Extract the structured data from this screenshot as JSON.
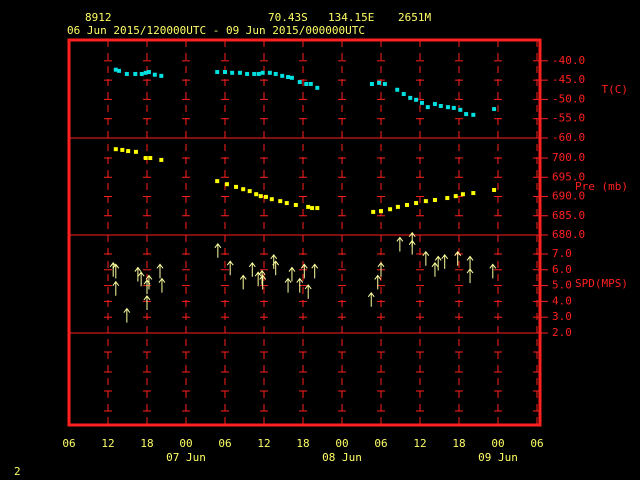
{
  "header": {
    "station": "8912",
    "lat": "70.43S",
    "lon": "134.15E",
    "elev": "2651M",
    "period": "06 Jun 2015/120000UTC - 09 Jun 2015/000000UTC"
  },
  "page_number": "2",
  "x_axis": {
    "xlim": [
      0,
      72
    ],
    "xticks": [
      {
        "value": 0,
        "label": "06"
      },
      {
        "value": 6,
        "label": "12"
      },
      {
        "value": 12,
        "label": "18"
      },
      {
        "value": 18,
        "label": "00"
      },
      {
        "value": 24,
        "label": "06"
      },
      {
        "value": 30,
        "label": "12"
      },
      {
        "value": 36,
        "label": "18"
      },
      {
        "value": 42,
        "label": "00"
      },
      {
        "value": 48,
        "label": "06"
      },
      {
        "value": 54,
        "label": "12"
      },
      {
        "value": 60,
        "label": "18"
      },
      {
        "value": 66,
        "label": "00"
      },
      {
        "value": 72,
        "label": "06"
      }
    ],
    "day_labels": [
      {
        "value": 18,
        "label": "07 Jun"
      },
      {
        "value": 42,
        "label": "08 Jun"
      },
      {
        "value": 66,
        "label": "09 Jun"
      }
    ]
  },
  "chart_data": [
    {
      "type": "scatter",
      "ylabel": "T(C)",
      "color": "#00e0e0",
      "ylim": [
        -60,
        -34.6
      ],
      "yticks": [
        {
          "value": -40,
          "label": "-40.0"
        },
        {
          "value": -45,
          "label": "-45.0"
        },
        {
          "value": -50,
          "label": "-50.0"
        },
        {
          "value": -55,
          "label": "-55.0"
        },
        {
          "value": -60,
          "label": "-60.0"
        }
      ],
      "x": [
        7.2,
        7.7,
        8.9,
        10.2,
        11.2,
        11.8,
        12.3,
        13.2,
        14.2,
        22.8,
        24.0,
        25.1,
        26.3,
        27.4,
        28.5,
        29.2,
        29.8,
        30.9,
        31.8,
        32.8,
        33.7,
        34.3,
        35.5,
        36.5,
        37.2,
        38.2,
        46.6,
        47.7,
        48.6,
        50.5,
        51.5,
        52.5,
        53.4,
        54.3,
        55.2,
        56.3,
        57.2,
        58.3,
        59.2,
        60.2,
        61.1,
        62.2,
        65.4
      ],
      "values": [
        -42.3,
        -42.6,
        -43.4,
        -43.4,
        -43.4,
        -43.1,
        -42.9,
        -43.6,
        -43.9,
        -42.9,
        -42.9,
        -43.1,
        -43.1,
        -43.4,
        -43.4,
        -43.4,
        -43.1,
        -43.1,
        -43.4,
        -43.9,
        -44.2,
        -44.4,
        -45.5,
        -46.0,
        -46.0,
        -47.0,
        -46.0,
        -45.7,
        -46.0,
        -47.5,
        -48.6,
        -49.6,
        -50.1,
        -50.9,
        -52.0,
        -51.2,
        -51.7,
        -52.0,
        -52.2,
        -52.7,
        -53.8,
        -54.0,
        -52.5
      ]
    },
    {
      "type": "scatter",
      "ylabel": "Pre (mb)",
      "color": "#ffff00",
      "ylim": [
        680,
        705.2
      ],
      "yticks": [
        {
          "value": 700,
          "label": "700.0"
        },
        {
          "value": 695,
          "label": "695.0"
        },
        {
          "value": 690,
          "label": "690.0"
        },
        {
          "value": 685,
          "label": "685.0"
        },
        {
          "value": 680,
          "label": "680.0"
        }
      ],
      "x": [
        7.2,
        8.2,
        9.1,
        10.3,
        11.8,
        12.5,
        14.2,
        22.8,
        24.3,
        25.7,
        26.8,
        27.8,
        28.8,
        29.5,
        30.3,
        31.2,
        32.5,
        33.5,
        34.9,
        36.8,
        37.4,
        38.2,
        46.8,
        48.0,
        49.4,
        50.6,
        52.0,
        53.4,
        54.9,
        56.3,
        58.2,
        59.5,
        60.6,
        62.2,
        65.4
      ],
      "values": [
        702.3,
        702.1,
        701.8,
        701.6,
        700.0,
        700.0,
        699.5,
        694.0,
        693.2,
        692.5,
        691.9,
        691.4,
        690.6,
        690.1,
        689.9,
        689.3,
        688.8,
        688.3,
        687.8,
        687.3,
        687.0,
        687.0,
        686.0,
        686.2,
        686.7,
        687.3,
        687.8,
        688.3,
        688.8,
        689.1,
        689.6,
        690.1,
        690.6,
        690.9,
        691.7
      ]
    },
    {
      "type": "arrows",
      "ylabel": "SPD(MPS)",
      "color": "#ffffa0",
      "ylim": [
        2,
        8.2
      ],
      "yticks": [
        {
          "value": 7,
          "label": "7.0"
        },
        {
          "value": 6,
          "label": "6.0"
        },
        {
          "value": 5,
          "label": "5.0"
        },
        {
          "value": 4,
          "label": "4.0"
        },
        {
          "value": 3,
          "label": "3.0"
        },
        {
          "value": 2,
          "label": "2.0"
        }
      ],
      "x": [
        6.8,
        7.2,
        7.2,
        8.9,
        10.6,
        11.1,
        12.0,
        12.3,
        12.0,
        14.0,
        14.3,
        22.9,
        24.8,
        26.8,
        28.2,
        29.1,
        29.8,
        29.7,
        31.5,
        31.8,
        33.7,
        34.3,
        35.5,
        36.2,
        36.8,
        37.8,
        46.5,
        47.5,
        48.0,
        50.9,
        52.8,
        52.8,
        54.9,
        56.3,
        56.8,
        57.8,
        59.8,
        61.7,
        61.7,
        65.2
      ],
      "values": [
        6.0,
        5.9,
        4.8,
        3.1,
        5.7,
        5.4,
        4.9,
        5.2,
        3.9,
        5.9,
        5.0,
        7.2,
        6.1,
        5.2,
        6.0,
        5.4,
        5.2,
        5.5,
        6.5,
        6.1,
        5.0,
        5.7,
        5.0,
        5.9,
        4.6,
        5.9,
        4.1,
        5.2,
        6.0,
        7.6,
        7.4,
        7.9,
        6.7,
        6.0,
        6.4,
        6.5,
        6.7,
        6.4,
        5.6,
        5.9
      ]
    }
  ]
}
